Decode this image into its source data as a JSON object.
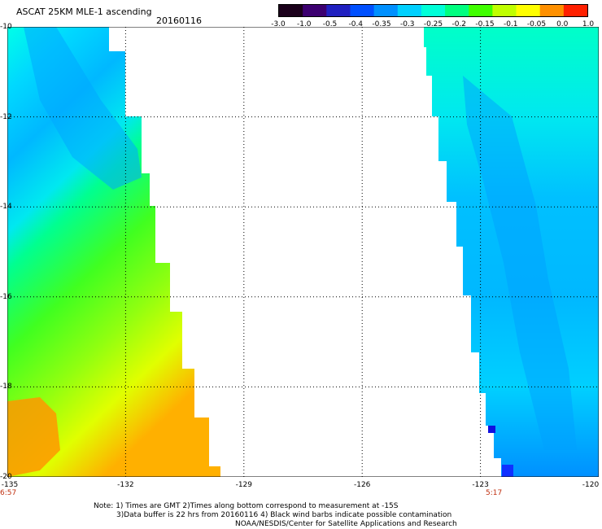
{
  "header": {
    "title": "ASCAT 25KM MLE-1 ascending",
    "date": "20160116"
  },
  "colorbar": {
    "labels": [
      "-3.0",
      "-1.0",
      "-0.5",
      "-0.4",
      "-0.35",
      "-0.3",
      "-0.25",
      "-0.2",
      "-0.15",
      "-0.1",
      "-0.05",
      "0.0",
      "1.0"
    ],
    "stops": [
      "#1a001a",
      "#3c0070",
      "#2020c0",
      "#0050ff",
      "#0090ff",
      "#00d0ff",
      "#00ffd8",
      "#00ff80",
      "#40ff00",
      "#c0ff00",
      "#ffff00",
      "#ff9000",
      "#ff2000"
    ]
  },
  "axes": {
    "lat_labels": [
      "-10",
      "-12",
      "-14",
      "-16",
      "-18",
      "-20"
    ],
    "lon_labels": [
      "-135",
      "-132",
      "-129",
      "-126",
      "-123",
      "-120"
    ]
  },
  "times": {
    "left": "6:57",
    "right": "5:17"
  },
  "notes": {
    "line1": "Note: 1) Times are GMT 2)Times along bottom correspond to measurement at -15S",
    "line2": "3)Data buffer is 22 hrs from 20160116 4) Black wind barbs indicate possible contamination",
    "line3": "NOAA/NESDIS/Center for Satellite Applications and Research"
  }
}
